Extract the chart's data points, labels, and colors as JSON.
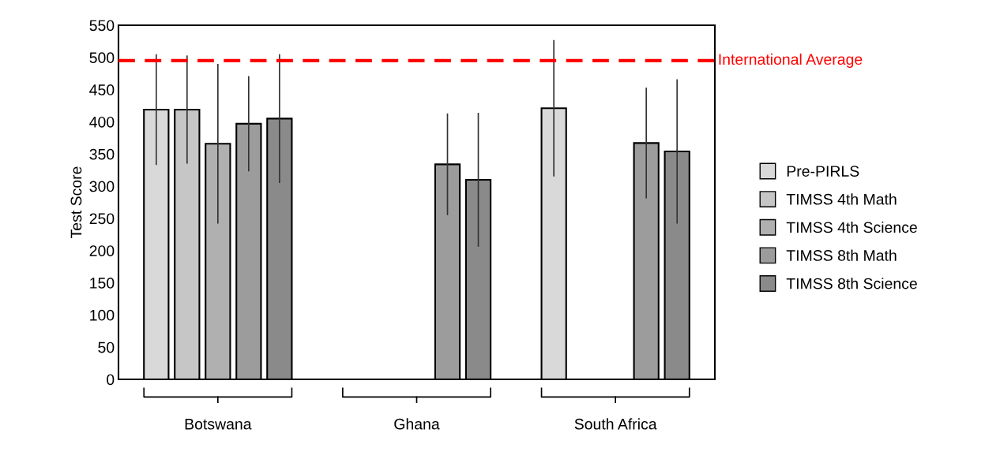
{
  "chart_data": {
    "type": "bar",
    "ylabel": "Test Score",
    "categories": [
      "Botswana",
      "Ghana",
      "South Africa"
    ],
    "series": [
      {
        "name": "Pre-PIRLS",
        "color": "#d9d9d9",
        "values": [
          419,
          null,
          421
        ],
        "errors": [
          85,
          null,
          105
        ]
      },
      {
        "name": "TIMSS 4th Math",
        "color": "#c6c6c6",
        "values": [
          419,
          null,
          null
        ],
        "errors": [
          83,
          null,
          null
        ]
      },
      {
        "name": "TIMSS 4th Science",
        "color": "#b0b0b0",
        "values": [
          366,
          null,
          null
        ],
        "errors": [
          123,
          null,
          null
        ]
      },
      {
        "name": "TIMSS 8th Math",
        "color": "#9c9c9c",
        "values": [
          397,
          334,
          367
        ],
        "errors": [
          73,
          78,
          85
        ]
      },
      {
        "name": "TIMSS 8th Science",
        "color": "#8a8a8a",
        "values": [
          405,
          310,
          354
        ],
        "errors": [
          99,
          103,
          111
        ]
      }
    ],
    "ylim": [
      0,
      550
    ],
    "yticks": [
      0,
      50,
      100,
      150,
      200,
      250,
      300,
      350,
      400,
      450,
      500,
      550
    ],
    "ref_lines": [
      {
        "axis": "y",
        "value": 495,
        "label": "International Average",
        "color": "#ff0000",
        "line_style": "dashed"
      }
    ],
    "grid": false,
    "legend": "right"
  }
}
